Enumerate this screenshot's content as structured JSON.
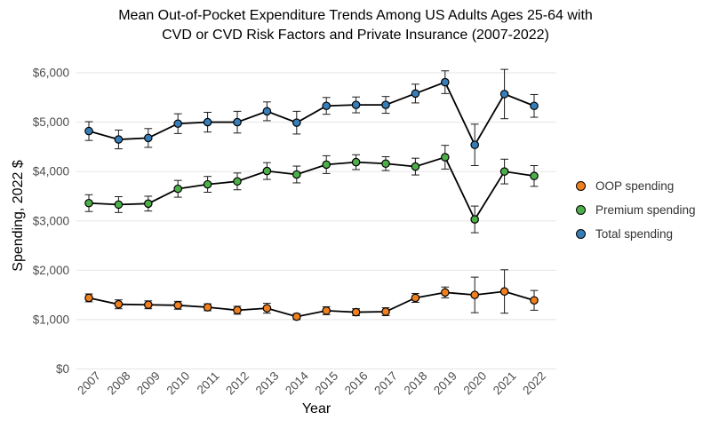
{
  "chart_data": {
    "type": "line",
    "title_lines": [
      "Mean Out-of-Pocket Expenditure Trends Among US Adults Ages 25-64 with",
      "CVD or CVD Risk Factors and Private Insurance (2007-2022)"
    ],
    "xlabel": "Year",
    "ylabel": "Spending, 2022 $",
    "x": [
      2007,
      2008,
      2009,
      2010,
      2011,
      2012,
      2013,
      2014,
      2015,
      2016,
      2017,
      2018,
      2019,
      2020,
      2021,
      2022
    ],
    "x_tick_labels": [
      "2007",
      "2008",
      "2009",
      "2010",
      "2011",
      "2012",
      "2013",
      "2014",
      "2015",
      "2016",
      "2017",
      "2018",
      "2019",
      "2020",
      "2021",
      "2022"
    ],
    "ylim": [
      0,
      6000
    ],
    "yticks": [
      0,
      1000,
      2000,
      3000,
      4000,
      5000,
      6000
    ],
    "ytick_labels": [
      "$0",
      "$1,000",
      "$2,000",
      "$3,000",
      "$4,000",
      "$5,000",
      "$6,000"
    ],
    "grid": "horizontal major gridlines only, light gray on white",
    "legend_position": "right-middle",
    "marker": "filled circle with black outline, black connecting lines, error bars with caps",
    "colors": {
      "oop": "#F0801F",
      "premium": "#4DAF4A",
      "total": "#377EB8",
      "tick_text": "#4d4d4d",
      "gridline": "#E4E4E4"
    },
    "series": [
      {
        "name": "OOP spending",
        "color": "#F0801F",
        "values": [
          1440,
          1310,
          1300,
          1290,
          1250,
          1190,
          1230,
          1060,
          1180,
          1150,
          1160,
          1440,
          1550,
          1500,
          1570,
          1390
        ],
        "error_plus_minus": [
          80,
          90,
          80,
          80,
          70,
          80,
          100,
          60,
          80,
          70,
          80,
          90,
          110,
          360,
          440,
          200
        ]
      },
      {
        "name": "Premium spending",
        "color": "#4DAF4A",
        "values": [
          3360,
          3330,
          3350,
          3650,
          3740,
          3800,
          4010,
          3940,
          4140,
          4190,
          4160,
          4100,
          4290,
          3030,
          4000,
          3910
        ],
        "error_plus_minus": [
          170,
          160,
          150,
          170,
          160,
          170,
          170,
          170,
          180,
          150,
          140,
          170,
          240,
          270,
          250,
          210
        ]
      },
      {
        "name": "Total spending",
        "color": "#377EB8",
        "values": [
          4820,
          4650,
          4680,
          4970,
          5000,
          5000,
          5220,
          4990,
          5330,
          5350,
          5350,
          5580,
          5810,
          4540,
          5570,
          5330
        ],
        "error_plus_minus": [
          190,
          190,
          190,
          200,
          200,
          220,
          190,
          230,
          170,
          160,
          170,
          190,
          230,
          420,
          500,
          230
        ]
      }
    ]
  }
}
